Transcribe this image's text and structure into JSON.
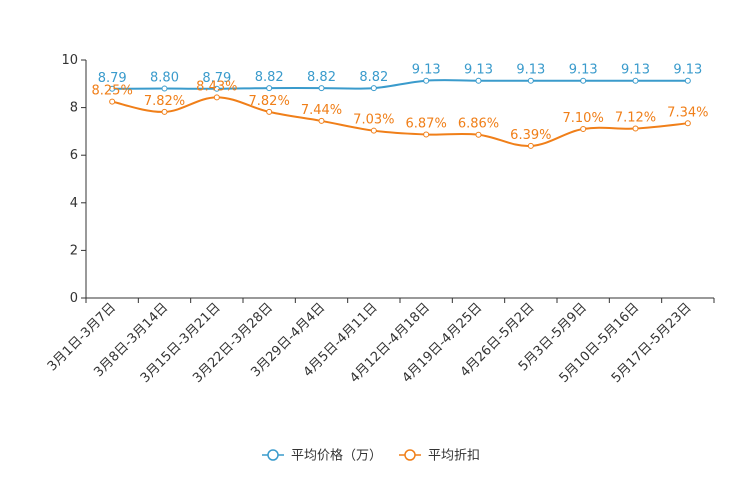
{
  "chart_data": {
    "type": "line",
    "title": "",
    "xlabel": "",
    "ylabel": "",
    "ylim": [
      0,
      10
    ],
    "yticks": [
      0,
      2,
      4,
      6,
      8,
      10
    ],
    "grid": false,
    "legend_position": "bottom-center",
    "categories": [
      "3月1日-3月7日",
      "3月8日-3月14日",
      "3月15日-3月21日",
      "3月22日-3月28日",
      "3月29日-4月4日",
      "4月5日-4月11日",
      "4月12日-4月18日",
      "4月19日-4月25日",
      "4月26日-5月2日",
      "5月3日-5月9日",
      "5月10日-5月16日",
      "5月17日-5月23日"
    ],
    "series": [
      {
        "name": "平均价格（万）",
        "color": "#3a9bcc",
        "values": [
          8.79,
          8.8,
          8.79,
          8.82,
          8.82,
          8.82,
          9.13,
          9.13,
          9.13,
          9.13,
          9.13,
          9.13
        ],
        "labels": [
          "8.79",
          "8.80",
          "8.79",
          "8.82",
          "8.82",
          "8.82",
          "9.13",
          "9.13",
          "9.13",
          "9.13",
          "9.13",
          "9.13"
        ]
      },
      {
        "name": "平均折扣",
        "color": "#f07f19",
        "values": [
          8.25,
          7.82,
          8.43,
          7.82,
          7.44,
          7.03,
          6.87,
          6.86,
          6.39,
          7.1,
          7.12,
          7.34
        ],
        "labels": [
          "8.25%",
          "7.82%",
          "8.43%",
          "7.82%",
          "7.44%",
          "7.03%",
          "6.87%",
          "6.86%",
          "6.39%",
          "7.10%",
          "7.12%",
          "7.34%"
        ]
      }
    ]
  }
}
